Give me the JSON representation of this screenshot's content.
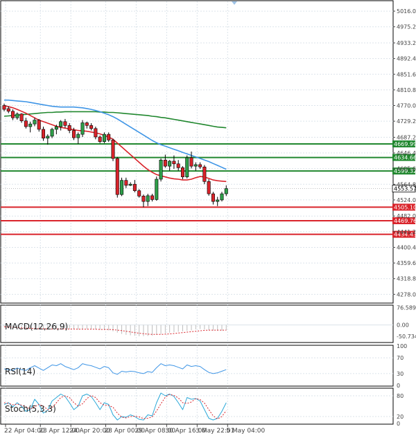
{
  "chart_data": {
    "type": "candlestick",
    "colors": {
      "grid": "#dbe3ea",
      "bull": "#2e9e49",
      "bear": "#d9232a",
      "ma_fast": "#d9232a",
      "ma_mid": "#3e95e6",
      "ma_slow": "#20872e",
      "support": "#d9232a",
      "resistance": "#20872e",
      "macd_hist": "#bdbdbd",
      "macd_signal": "#d9232a",
      "rsi": "#3e95e6",
      "stoch_main": "#2aa8d8",
      "stoch_signal": "#d9232a",
      "axis": "#444444"
    },
    "main": {
      "ylim": [
        4257.0,
        5036.0
      ],
      "ticks": [
        "5016.00",
        "4975.20",
        "4933.20",
        "4892.40",
        "4851.60",
        "4810.80",
        "4770.00",
        "4729.20",
        "4687.20",
        "4646.40",
        "4605.60",
        "4564.80",
        "4524.00",
        "4482.00",
        "4441.20",
        "4400.40",
        "4359.60",
        "4318.80",
        "4278.00"
      ],
      "resistance_levels": [
        "4669.99",
        "4634.66",
        "4599.32"
      ],
      "support_levels": [
        "4505.10",
        "4469.76",
        "4434.43"
      ],
      "current_price": "4553.57",
      "candles": [
        [
          4770,
          4775,
          4755,
          4760
        ],
        [
          4762,
          4768,
          4750,
          4755
        ],
        [
          4755,
          4760,
          4732,
          4738
        ],
        [
          4738,
          4752,
          4733,
          4748
        ],
        [
          4748,
          4750,
          4725,
          4730
        ],
        [
          4730,
          4738,
          4710,
          4715
        ],
        [
          4715,
          4728,
          4700,
          4722
        ],
        [
          4722,
          4738,
          4716,
          4732
        ],
        [
          4732,
          4735,
          4702,
          4708
        ],
        [
          4708,
          4715,
          4678,
          4685
        ],
        [
          4685,
          4695,
          4668,
          4690
        ],
        [
          4690,
          4712,
          4685,
          4708
        ],
        [
          4708,
          4720,
          4695,
          4715
        ],
        [
          4715,
          4732,
          4705,
          4728
        ],
        [
          4728,
          4735,
          4712,
          4718
        ],
        [
          4718,
          4724,
          4698,
          4705
        ],
        [
          4705,
          4712,
          4680,
          4686
        ],
        [
          4686,
          4700,
          4670,
          4695
        ],
        [
          4695,
          4732,
          4688,
          4725
        ],
        [
          4725,
          4728,
          4710,
          4718
        ],
        [
          4718,
          4724,
          4705,
          4710
        ],
        [
          4710,
          4715,
          4682,
          4688
        ],
        [
          4688,
          4692,
          4672,
          4676
        ],
        [
          4676,
          4700,
          4672,
          4695
        ],
        [
          4695,
          4700,
          4675,
          4680
        ],
        [
          4680,
          4684,
          4625,
          4632
        ],
        [
          4632,
          4636,
          4530,
          4538
        ],
        [
          4538,
          4582,
          4534,
          4575
        ],
        [
          4575,
          4582,
          4555,
          4562
        ],
        [
          4562,
          4570,
          4560,
          4565
        ],
        [
          4565,
          4576,
          4544,
          4548
        ],
        [
          4548,
          4552,
          4530,
          4534
        ],
        [
          4534,
          4538,
          4505,
          4520
        ],
        [
          4520,
          4540,
          4508,
          4535
        ],
        [
          4535,
          4540,
          4520,
          4525
        ],
        [
          4525,
          4585,
          4522,
          4578
        ],
        [
          4578,
          4632,
          4572,
          4628
        ],
        [
          4628,
          4642,
          4608,
          4612
        ],
        [
          4612,
          4628,
          4600,
          4625
        ],
        [
          4625,
          4640,
          4605,
          4618
        ],
        [
          4618,
          4628,
          4600,
          4608
        ],
        [
          4608,
          4612,
          4578,
          4584
        ],
        [
          4584,
          4640,
          4580,
          4634
        ],
        [
          4634,
          4650,
          4606,
          4612
        ],
        [
          4612,
          4622,
          4600,
          4616
        ],
        [
          4616,
          4622,
          4605,
          4610
        ],
        [
          4610,
          4615,
          4565,
          4572
        ],
        [
          4572,
          4578,
          4535,
          4540
        ],
        [
          4540,
          4545,
          4512,
          4520
        ],
        [
          4520,
          4532,
          4508,
          4524
        ],
        [
          4524,
          4545,
          4520,
          4540
        ],
        [
          4540,
          4562,
          4534,
          4553.57
        ]
      ],
      "ma_fast": [
        4770,
        4767,
        4764,
        4760,
        4755,
        4750,
        4744,
        4738,
        4732,
        4728,
        4724,
        4720,
        4716,
        4713,
        4711,
        4709,
        4707,
        4705,
        4704,
        4703,
        4701,
        4699,
        4696,
        4692,
        4688,
        4682,
        4672,
        4662,
        4652,
        4642,
        4632,
        4622,
        4612,
        4603,
        4596,
        4590,
        4587,
        4584,
        4581,
        4579,
        4578,
        4576,
        4576,
        4578,
        4582,
        4585,
        4584,
        4580,
        4576,
        4574,
        4573,
        4572
      ],
      "ma_mid": [
        4784,
        4784,
        4783,
        4782,
        4781,
        4780,
        4778,
        4776,
        4774,
        4772,
        4770,
        4768,
        4767,
        4766,
        4766,
        4766,
        4766,
        4765,
        4764,
        4762,
        4760,
        4757,
        4754,
        4750,
        4746,
        4741,
        4735,
        4728,
        4721,
        4714,
        4707,
        4700,
        4693,
        4686,
        4679,
        4673,
        4668,
        4664,
        4660,
        4656,
        4652,
        4648,
        4644,
        4640,
        4636,
        4632,
        4628,
        4624,
        4619,
        4614,
        4609,
        4604
      ],
      "ma_slow": [
        4742,
        4743,
        4744,
        4745,
        4746,
        4747,
        4748,
        4749,
        4750,
        4751,
        4752,
        4752,
        4753,
        4753,
        4754,
        4754,
        4754,
        4754,
        4754,
        4754,
        4754,
        4754,
        4753,
        4753,
        4752,
        4752,
        4751,
        4750,
        4749,
        4748,
        4747,
        4746,
        4745,
        4744,
        4742,
        4741,
        4739,
        4738,
        4736,
        4734,
        4732,
        4730,
        4728,
        4726,
        4724,
        4722,
        4720,
        4718,
        4716,
        4714,
        4713,
        4712
      ]
    },
    "macd": {
      "label": "MACD(12,26,9)",
      "ylim": [
        -75,
        85
      ],
      "ticks": [
        "76.589",
        "0.00",
        "-50.734"
      ],
      "hist": [
        -6,
        -9,
        -12,
        -14,
        -15,
        -17,
        -18,
        -19,
        -20,
        -21,
        -21,
        -21,
        -20,
        -19,
        -19,
        -19,
        -20,
        -20,
        -19,
        -18,
        -19,
        -20,
        -21,
        -22,
        -24,
        -28,
        -34,
        -40,
        -44,
        -46,
        -48,
        -50,
        -50,
        -49,
        -47,
        -44,
        -40,
        -37,
        -34,
        -32,
        -30,
        -28,
        -26,
        -24,
        -20,
        -18,
        -20,
        -23,
        -25,
        -26,
        -25,
        -24
      ],
      "signal": [
        -8,
        -9,
        -10,
        -12,
        -13,
        -14,
        -15,
        -16,
        -17,
        -17,
        -18,
        -18,
        -18,
        -18,
        -18,
        -18,
        -18,
        -19,
        -19,
        -19,
        -19,
        -19,
        -20,
        -20,
        -20,
        -21,
        -23,
        -25,
        -28,
        -31,
        -34,
        -37,
        -39,
        -41,
        -42,
        -42,
        -42,
        -41,
        -40,
        -38,
        -36,
        -34,
        -32,
        -30,
        -28,
        -26,
        -24,
        -23,
        -23,
        -23,
        -23,
        -23
      ]
    },
    "rsi": {
      "label": "RSI(14)",
      "ylim": [
        0,
        100
      ],
      "ticks": [
        "100",
        "70",
        "30",
        "0"
      ],
      "values": [
        42,
        40,
        38,
        44,
        40,
        38,
        45,
        50,
        44,
        38,
        45,
        52,
        50,
        55,
        48,
        44,
        40,
        45,
        55,
        52,
        50,
        46,
        42,
        48,
        45,
        32,
        28,
        36,
        34,
        36,
        35,
        32,
        30,
        35,
        33,
        45,
        55,
        50,
        52,
        50,
        46,
        42,
        52,
        48,
        50,
        48,
        40,
        33,
        30,
        32,
        36,
        40
      ]
    },
    "stoch": {
      "label": "Stoch(5,3,3)",
      "ylim": [
        0,
        100
      ],
      "ticks": [
        "80",
        "20",
        "0"
      ],
      "main": [
        55,
        60,
        48,
        60,
        50,
        35,
        40,
        70,
        55,
        30,
        38,
        65,
        75,
        85,
        78,
        60,
        40,
        50,
        80,
        85,
        78,
        60,
        40,
        60,
        55,
        25,
        10,
        20,
        18,
        25,
        20,
        12,
        10,
        25,
        22,
        60,
        88,
        80,
        85,
        78,
        60,
        40,
        75,
        70,
        72,
        65,
        40,
        15,
        10,
        15,
        35,
        60
      ],
      "signal": [
        60,
        58,
        54,
        56,
        53,
        48,
        42,
        48,
        55,
        50,
        40,
        45,
        60,
        75,
        80,
        75,
        60,
        50,
        57,
        72,
        81,
        75,
        60,
        53,
        52,
        47,
        30,
        18,
        16,
        20,
        21,
        19,
        14,
        15,
        19,
        36,
        57,
        76,
        84,
        81,
        74,
        60,
        58,
        62,
        72,
        69,
        59,
        40,
        22,
        13,
        20,
        37
      ]
    },
    "x_labels": [
      "22 Apr 04:00",
      "23 Apr 12:00",
      "24 Apr 20:00",
      "28 Apr 00:00",
      "29 Apr 08:00",
      "30 Apr 16:00",
      "3 May 22:01",
      "5 May 04:00"
    ]
  }
}
